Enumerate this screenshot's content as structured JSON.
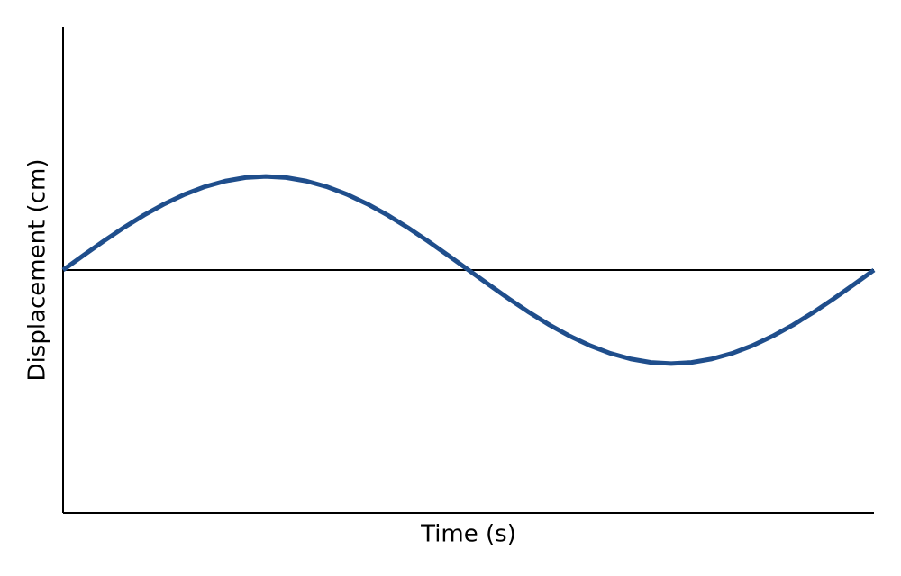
{
  "chart_data": {
    "type": "line",
    "x_label": "Time (s)",
    "y_label": "Displacement (cm)",
    "x": [
      0,
      0.025,
      0.05,
      0.075,
      0.1,
      0.125,
      0.15,
      0.175,
      0.2,
      0.225,
      0.25,
      0.275,
      0.3,
      0.325,
      0.35,
      0.375,
      0.4,
      0.425,
      0.45,
      0.475,
      0.5,
      0.525,
      0.55,
      0.575,
      0.6,
      0.625,
      0.65,
      0.675,
      0.7,
      0.725,
      0.75,
      0.775,
      0.8,
      0.825,
      0.85,
      0.875,
      0.9,
      0.925,
      0.95,
      0.975,
      1
    ],
    "series": [
      {
        "color": "#1f4e8c",
        "values": [
          0,
          0.156,
          0.309,
          0.454,
          0.588,
          0.707,
          0.809,
          0.891,
          0.951,
          0.988,
          1,
          0.988,
          0.951,
          0.891,
          0.809,
          0.707,
          0.588,
          0.454,
          0.309,
          0.156,
          0,
          -0.156,
          -0.309,
          -0.454,
          -0.588,
          -0.707,
          -0.809,
          -0.891,
          -0.951,
          -0.988,
          -1,
          -0.988,
          -0.951,
          -0.891,
          -0.809,
          -0.707,
          -0.588,
          -0.454,
          -0.309,
          -0.156,
          0
        ]
      }
    ],
    "xlim": [
      0,
      1
    ],
    "ylim": [
      -2.6,
      2.6
    ],
    "zero_line": true
  }
}
